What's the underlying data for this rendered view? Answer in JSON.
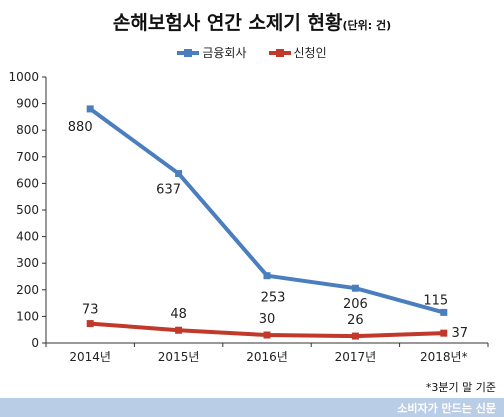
{
  "chart_data": {
    "type": "line",
    "title": "손해보험사 연간 소제기 현황",
    "title_unit": "(단위: 건)",
    "categories": [
      "2014년",
      "2015년",
      "2016년",
      "2017년",
      "2018년*"
    ],
    "series": [
      {
        "name": "금융회사",
        "color": "#4a7ebf",
        "values": [
          880,
          637,
          253,
          206,
          115
        ]
      },
      {
        "name": "신청인",
        "color": "#c0392b",
        "values": [
          73,
          48,
          30,
          26,
          37
        ]
      }
    ],
    "ylim": [
      0,
      1000
    ],
    "yticks": [
      0,
      100,
      200,
      300,
      400,
      500,
      600,
      700,
      800,
      900,
      1000
    ],
    "grid": false,
    "legend_position": "top-center"
  },
  "footnote": "*3분기 말 기준",
  "brand": "소비자가 만드는 신문"
}
